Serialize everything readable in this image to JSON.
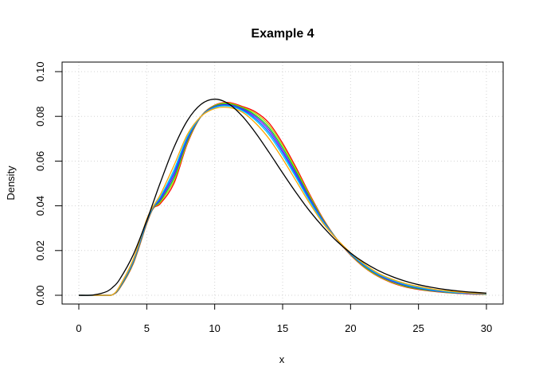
{
  "chart_data": {
    "type": "line",
    "title": "Example 4",
    "xlabel": "x",
    "ylabel": "Density",
    "xlim": [
      0,
      30
    ],
    "ylim": [
      0,
      0.1
    ],
    "xticks": [
      "0",
      "5",
      "10",
      "15",
      "20",
      "25",
      "30"
    ],
    "yticks": [
      "0.00",
      "0.02",
      "0.04",
      "0.06",
      "0.08",
      "0.10"
    ],
    "grid": true,
    "grid_style": "dotted",
    "x": [
      0,
      1,
      2,
      2.5,
      3,
      4,
      5,
      5.5,
      6,
      7,
      8,
      9,
      10,
      11,
      12,
      13,
      14,
      15,
      16,
      17,
      18,
      19,
      20,
      21,
      22,
      23,
      24,
      25,
      26,
      27,
      28,
      29,
      30
    ],
    "series": [
      {
        "color": "#000000",
        "values": [
          0,
          8e-05,
          0.00153,
          0.0036,
          0.00706,
          0.01804,
          0.0334,
          0.0419,
          0.0504,
          0.0661,
          0.0782,
          0.0854,
          0.0877,
          0.0857,
          0.0803,
          0.0727,
          0.0639,
          0.0547,
          0.0458,
          0.0376,
          0.0304,
          0.0241,
          0.0189,
          0.01465,
          0.0112,
          0.00849,
          0.00637,
          0.00474,
          0.0035,
          0.00256,
          0.00186,
          0.00135,
          0.00097
        ]
      },
      {
        "color": "#FF0000",
        "values": [
          0,
          0,
          0,
          0.0003,
          0.003,
          0.014,
          0.032,
          0.039,
          0.041,
          0.05,
          0.068,
          0.08,
          0.085,
          0.0862,
          0.0845,
          0.082,
          0.077,
          0.068,
          0.057,
          0.045,
          0.034,
          0.025,
          0.018,
          0.0125,
          0.0085,
          0.0057,
          0.0038,
          0.0026,
          0.0018,
          0.0012,
          0.0008,
          0.0005,
          0.0004
        ]
      },
      {
        "color": "#B5D400",
        "values": [
          0,
          0,
          0,
          0.0003,
          0.0032,
          0.0143,
          0.0323,
          0.0392,
          0.0416,
          0.0512,
          0.0686,
          0.08,
          0.0848,
          0.0859,
          0.0841,
          0.0813,
          0.076,
          0.067,
          0.0561,
          0.0444,
          0.0337,
          0.025,
          0.0182,
          0.0127,
          0.0087,
          0.0059,
          0.004,
          0.0028,
          0.0019,
          0.0013,
          0.0009,
          0.0006,
          0.0005
        ]
      },
      {
        "color": "#00CC33",
        "values": [
          0,
          0,
          0,
          0.0003,
          0.0033,
          0.0146,
          0.0326,
          0.0393,
          0.0422,
          0.0524,
          0.0692,
          0.08,
          0.0846,
          0.0855,
          0.0838,
          0.0805,
          0.0749,
          0.0659,
          0.0552,
          0.0438,
          0.0334,
          0.025,
          0.0183,
          0.013,
          0.009,
          0.0062,
          0.0042,
          0.0029,
          0.002,
          0.0014,
          0.0009,
          0.0007,
          0.0005
        ]
      },
      {
        "color": "#8000FF",
        "values": [
          0,
          0,
          0,
          0.0003,
          0.0035,
          0.0149,
          0.0329,
          0.0395,
          0.0428,
          0.0536,
          0.0698,
          0.08,
          0.0843,
          0.0852,
          0.0834,
          0.0798,
          0.0739,
          0.0648,
          0.0543,
          0.0432,
          0.0331,
          0.025,
          0.0185,
          0.0132,
          0.0092,
          0.0064,
          0.0045,
          0.0032,
          0.0022,
          0.0015,
          0.001,
          0.0007,
          0.0006
        ]
      },
      {
        "color": "#0066FF",
        "values": [
          0,
          0,
          0,
          0.0003,
          0.0036,
          0.0152,
          0.0332,
          0.0396,
          0.0434,
          0.0548,
          0.0704,
          0.08,
          0.0841,
          0.0849,
          0.083,
          0.079,
          0.0728,
          0.0638,
          0.0534,
          0.0426,
          0.0328,
          0.025,
          0.0186,
          0.0134,
          0.0094,
          0.0067,
          0.0047,
          0.0034,
          0.0023,
          0.0016,
          0.0011,
          0.0008,
          0.0006
        ]
      },
      {
        "color": "#00BFFF",
        "values": [
          0,
          0,
          0,
          0.0003,
          0.0038,
          0.0155,
          0.0335,
          0.0398,
          0.044,
          0.056,
          0.071,
          0.08,
          0.0839,
          0.0846,
          0.0826,
          0.0783,
          0.0718,
          0.0627,
          0.0525,
          0.042,
          0.0325,
          0.025,
          0.0188,
          0.0136,
          0.0096,
          0.0069,
          0.0049,
          0.0035,
          0.0025,
          0.0017,
          0.0012,
          0.0009,
          0.0007
        ]
      },
      {
        "color": "#FFA500",
        "values": [
          0,
          0,
          0,
          0.0003,
          0.004,
          0.016,
          0.034,
          0.04,
          0.045,
          0.058,
          0.072,
          0.08,
          0.0835,
          0.084,
          0.082,
          0.077,
          0.07,
          0.061,
          0.051,
          0.041,
          0.032,
          0.025,
          0.019,
          0.014,
          0.01,
          0.0073,
          0.0053,
          0.0039,
          0.0028,
          0.002,
          0.0014,
          0.001,
          0.0008
        ]
      }
    ]
  }
}
